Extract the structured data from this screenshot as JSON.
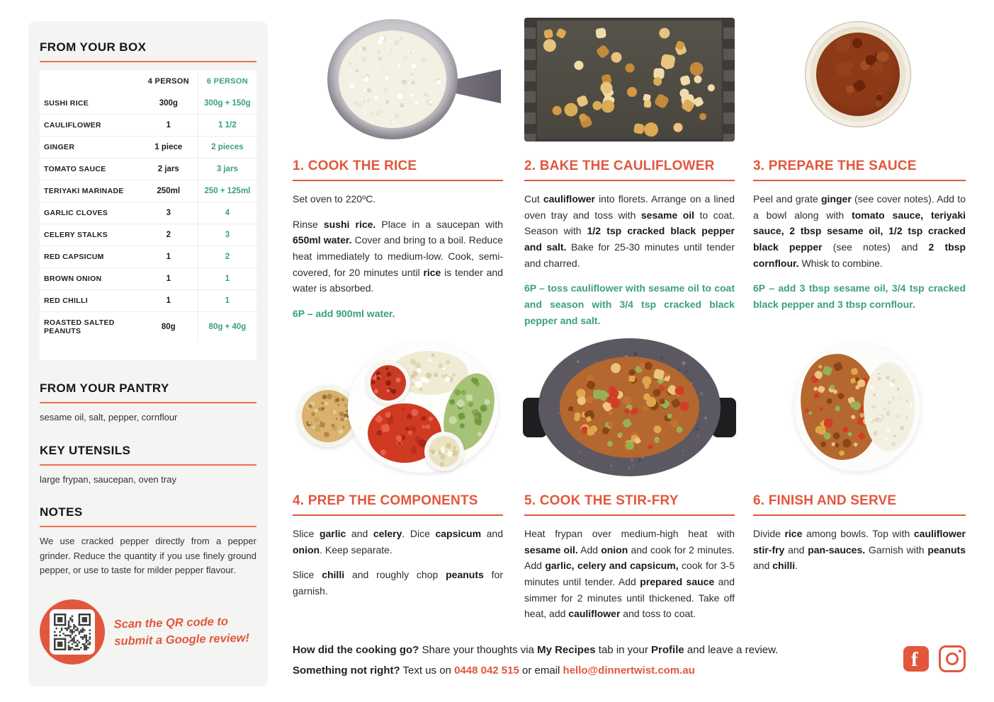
{
  "colors": {
    "accent": "#e2573c",
    "green": "#3aa17a"
  },
  "sidebar": {
    "box_title": "FROM YOUR BOX",
    "table": {
      "headers": [
        "",
        "4 PERSON",
        "6 PERSON"
      ],
      "rows": [
        {
          "item": "SUSHI RICE",
          "p4": "300g",
          "p6": "300g + 150g"
        },
        {
          "item": "CAULIFLOWER",
          "p4": "1",
          "p6": "1 1/2"
        },
        {
          "item": "GINGER",
          "p4": "1 piece",
          "p6": "2 pieces"
        },
        {
          "item": "TOMATO SAUCE",
          "p4": "2 jars",
          "p6": "3 jars"
        },
        {
          "item": "TERIYAKI MARINADE",
          "p4": "250ml",
          "p6": "250 + 125ml"
        },
        {
          "item": "GARLIC CLOVES",
          "p4": "3",
          "p6": "4"
        },
        {
          "item": "CELERY STALKS",
          "p4": "2",
          "p6": "3"
        },
        {
          "item": "RED CAPSICUM",
          "p4": "1",
          "p6": "2"
        },
        {
          "item": "BROWN ONION",
          "p4": "1",
          "p6": "1"
        },
        {
          "item": "RED CHILLI",
          "p4": "1",
          "p6": "1"
        },
        {
          "item": "ROASTED SALTED PEANUTS",
          "p4": "80g",
          "p6": "80g + 40g"
        }
      ]
    },
    "pantry_title": "FROM YOUR PANTRY",
    "pantry_items": "sesame oil, salt, pepper, cornflour",
    "utensils_title": "KEY UTENSILS",
    "utensils_items": "large frypan, saucepan, oven tray",
    "notes_title": "NOTES",
    "notes_text": "We use cracked pepper directly from a pepper grinder. Reduce the quantity if you use finely ground pepper, or use to taste for milder pepper flavour.",
    "qr": {
      "icon": "qr-code-icon",
      "line1": "Scan the QR code to",
      "line2": "submit a Google review!"
    }
  },
  "steps": [
    {
      "title": "1. COOK THE RICE",
      "photo": "saucepan-of-cooked-rice",
      "paragraphs": [
        [
          {
            "t": "Set oven to 220ºC."
          }
        ],
        [
          {
            "t": "Rinse "
          },
          {
            "t": "sushi rice.",
            "b": 1
          },
          {
            "t": " Place in a saucepan with "
          },
          {
            "t": "650ml water.",
            "b": 1
          },
          {
            "t": " Cover and bring to a boil. Reduce heat immediately to medium-low. Cook, semi-covered, for 20 minutes until "
          },
          {
            "t": "rice",
            "b": 1
          },
          {
            "t": " is tender and water is absorbed."
          }
        ]
      ],
      "six_p": "6P – add 900ml water."
    },
    {
      "title": "2. BAKE THE CAULIFLOWER",
      "photo": "oven-tray-of-cauliflower-florets",
      "paragraphs": [
        [
          {
            "t": "Cut "
          },
          {
            "t": "cauliflower",
            "b": 1
          },
          {
            "t": " into florets. Arrange on a lined oven tray and toss with "
          },
          {
            "t": "sesame oil",
            "b": 1
          },
          {
            "t": " to coat. Season with "
          },
          {
            "t": "1/2 tsp cracked black pepper and salt.",
            "b": 1
          },
          {
            "t": " Bake for 25-30 minutes until tender and charred."
          }
        ]
      ],
      "six_p": "6P – toss cauliflower with sesame oil to coat and season with 3/4 tsp cracked black pepper and salt."
    },
    {
      "title": "3. PREPARE THE SAUCE",
      "photo": "bowl-of-prepared-sauce",
      "paragraphs": [
        [
          {
            "t": "Peel and grate "
          },
          {
            "t": "ginger",
            "b": 1
          },
          {
            "t": " (see cover notes). Add to a bowl along with "
          },
          {
            "t": "tomato sauce, teriyaki sauce, 2 tbsp sesame oil, 1/2 tsp cracked black pepper",
            "b": 1
          },
          {
            "t": " (see notes) and "
          },
          {
            "t": "2 tbsp cornflour.",
            "b": 1
          },
          {
            "t": " Whisk to combine."
          }
        ]
      ],
      "six_p": "6P – add 3 tbsp sesame oil, 3/4 tsp cracked black pepper and 3 tbsp cornflour."
    },
    {
      "title": "4. PREP THE COMPONENTS",
      "photo": "plate-of-prepped-vegetables-and-peanuts",
      "paragraphs": [
        [
          {
            "t": "Slice "
          },
          {
            "t": "garlic",
            "b": 1
          },
          {
            "t": " and "
          },
          {
            "t": "celery",
            "b": 1
          },
          {
            "t": ". Dice "
          },
          {
            "t": "capsicum",
            "b": 1
          },
          {
            "t": " and "
          },
          {
            "t": "onion",
            "b": 1
          },
          {
            "t": ". Keep separate."
          }
        ],
        [
          {
            "t": "Slice "
          },
          {
            "t": "chilli",
            "b": 1
          },
          {
            "t": " and roughly chop "
          },
          {
            "t": "peanuts",
            "b": 1
          },
          {
            "t": " for garnish."
          }
        ]
      ],
      "six_p": ""
    },
    {
      "title": "5. COOK THE STIR-FRY",
      "photo": "frypan-of-stir-fry",
      "paragraphs": [
        [
          {
            "t": "Heat frypan over medium-high heat with "
          },
          {
            "t": "sesame oil.",
            "b": 1
          },
          {
            "t": " Add "
          },
          {
            "t": "onion",
            "b": 1
          },
          {
            "t": " and cook for 2 minutes. Add "
          },
          {
            "t": "garlic, celery and capsicum,",
            "b": 1
          },
          {
            "t": " cook for 3-5 minutes until tender. Add "
          },
          {
            "t": "prepared sauce",
            "b": 1
          },
          {
            "t": " and simmer for 2 minutes until thickened. Take off heat, add "
          },
          {
            "t": "cauliflower",
            "b": 1
          },
          {
            "t": " and toss to coat."
          }
        ]
      ],
      "six_p": ""
    },
    {
      "title": "6. FINISH AND SERVE",
      "photo": "served-plate-of-rice-and-stir-fry",
      "paragraphs": [
        [
          {
            "t": "Divide "
          },
          {
            "t": "rice",
            "b": 1
          },
          {
            "t": " among bowls. Top with "
          },
          {
            "t": "cauliflower stir-fry",
            "b": 1
          },
          {
            "t": " and "
          },
          {
            "t": "pan-sauces.",
            "b": 1
          },
          {
            "t": " Garnish with "
          },
          {
            "t": "peanuts",
            "b": 1
          },
          {
            "t": " and "
          },
          {
            "t": "chilli",
            "b": 1
          },
          {
            "t": "."
          }
        ]
      ],
      "six_p": ""
    }
  ],
  "footer": {
    "line1": [
      {
        "t": "How did the cooking go?",
        "b": 1
      },
      {
        "t": " Share your thoughts via "
      },
      {
        "t": "My Recipes",
        "b": 1
      },
      {
        "t": " tab in your "
      },
      {
        "t": "Profile",
        "b": 1
      },
      {
        "t": " and leave a review."
      }
    ],
    "line2": [
      {
        "t": "Something not right?",
        "b": 1
      },
      {
        "t": " Text us on "
      },
      {
        "t": "0448 042 515",
        "b": 1,
        "c": 1
      },
      {
        "t": " or email "
      },
      {
        "t": "hello@dinnertwist.com.au",
        "b": 1,
        "c": 1
      }
    ],
    "social_icons": [
      "facebook-icon",
      "instagram-icon"
    ]
  }
}
